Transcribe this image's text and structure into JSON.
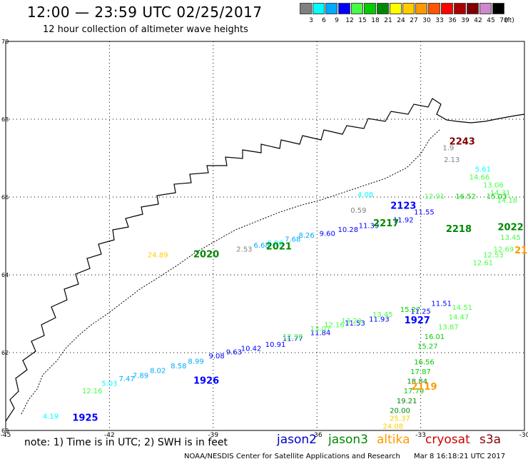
{
  "header": {
    "title": "12:00 — 23:59 UTC 02/25/2017",
    "subtitle": "12 hour collection of altimeter wave heights"
  },
  "color_scale": {
    "unit_label": "(ft)",
    "bins": [
      {
        "label": "3",
        "color": "#808080"
      },
      {
        "label": "6",
        "color": "#00ffff"
      },
      {
        "label": "9",
        "color": "#00aaff"
      },
      {
        "label": "12",
        "color": "#0000ff"
      },
      {
        "label": "15",
        "color": "#44ff44"
      },
      {
        "label": "18",
        "color": "#00cc00"
      },
      {
        "label": "21",
        "color": "#008800"
      },
      {
        "label": "24",
        "color": "#ffff00"
      },
      {
        "label": "27",
        "color": "#ffcc00"
      },
      {
        "label": "30",
        "color": "#ff9900"
      },
      {
        "label": "33",
        "color": "#ff5500"
      },
      {
        "label": "36",
        "color": "#ff0000"
      },
      {
        "label": "39",
        "color": "#aa0000"
      },
      {
        "label": "42",
        "color": "#800000"
      },
      {
        "label": "45",
        "color": "#cc88cc"
      },
      {
        "label": "70",
        "color": "#000000"
      }
    ]
  },
  "map": {
    "lon_range": [
      -45,
      -30
    ],
    "lat_range": [
      60,
      70
    ],
    "lon_ticks": [
      "-45",
      "-42",
      "-39",
      "-36",
      "-33",
      "-30"
    ],
    "lat_ticks": [
      "70",
      "68",
      "66",
      "64",
      "62",
      "60"
    ],
    "grid": "dotted",
    "time_labels": [
      {
        "text": "2243",
        "lon": -31.8,
        "lat": 67.35,
        "color": "#800000"
      },
      {
        "text": "2123",
        "lon": -33.5,
        "lat": 65.7,
        "color": "#0000ff"
      },
      {
        "text": "2217",
        "lon": -34.0,
        "lat": 65.25,
        "color": "#008800"
      },
      {
        "text": "2218",
        "lon": -31.9,
        "lat": 65.1,
        "color": "#008800"
      },
      {
        "text": "2022",
        "lon": -30.4,
        "lat": 65.15,
        "color": "#008800"
      },
      {
        "text": "2020",
        "lon": -39.2,
        "lat": 64.45,
        "color": "#008800"
      },
      {
        "text": "2021",
        "lon": -37.1,
        "lat": 64.65,
        "color": "#008800"
      },
      {
        "text": "1927",
        "lon": -33.1,
        "lat": 62.75,
        "color": "#0000ff"
      },
      {
        "text": "1926",
        "lon": -39.2,
        "lat": 61.2,
        "color": "#0000ff"
      },
      {
        "text": "1925",
        "lon": -42.7,
        "lat": 60.25,
        "color": "#0000ff"
      },
      {
        "text": "2119",
        "lon": -32.9,
        "lat": 61.05,
        "color": "#ff9900"
      },
      {
        "text": "21",
        "lon": -30.1,
        "lat": 64.55,
        "color": "#ff9900"
      }
    ],
    "tracks": [
      {
        "name": "jason2 1925-1926",
        "points": [
          {
            "text": "4.19",
            "lon": -43.7,
            "lat": 60.3
          },
          {
            "text": "12.16",
            "lon": -42.5,
            "lat": 60.95
          },
          {
            "text": "5.03",
            "lon": -42.0,
            "lat": 61.15
          },
          {
            "text": "7.47",
            "lon": -41.5,
            "lat": 61.27
          },
          {
            "text": "7.89",
            "lon": -41.1,
            "lat": 61.35
          },
          {
            "text": "8.02",
            "lon": -40.6,
            "lat": 61.48
          },
          {
            "text": "8.58",
            "lon": -40.0,
            "lat": 61.6
          },
          {
            "text": "8.99",
            "lon": -39.5,
            "lat": 61.72
          },
          {
            "text": "9.08",
            "lon": -38.9,
            "lat": 61.85
          },
          {
            "text": "9.63",
            "lon": -38.4,
            "lat": 61.95
          },
          {
            "text": "10.42",
            "lon": -37.9,
            "lat": 62.05
          },
          {
            "text": "10.91",
            "lon": -37.2,
            "lat": 62.15
          },
          {
            "text": "11.77",
            "lon": -36.7,
            "lat": 62.3
          },
          {
            "text": "11.84",
            "lon": -35.9,
            "lat": 62.45
          },
          {
            "text": "11.53",
            "lon": -34.9,
            "lat": 62.7
          },
          {
            "text": "11.93",
            "lon": -34.2,
            "lat": 62.8
          },
          {
            "text": "11.25",
            "lon": -33.0,
            "lat": 63.0
          },
          {
            "text": "11.51",
            "lon": -32.4,
            "lat": 63.2
          }
        ]
      },
      {
        "name": "jason3 track",
        "points": [
          {
            "text": "12.38",
            "lon": -36.7,
            "lat": 62.35
          },
          {
            "text": "13.07",
            "lon": -35.9,
            "lat": 62.55
          },
          {
            "text": "12.16",
            "lon": -35.5,
            "lat": 62.65
          },
          {
            "text": "13.29",
            "lon": -35.0,
            "lat": 62.75
          },
          {
            "text": "13.45",
            "lon": -34.1,
            "lat": 62.92
          },
          {
            "text": "15.27",
            "lon": -33.3,
            "lat": 63.05
          },
          {
            "text": "16.01",
            "lon": -32.6,
            "lat": 62.35
          },
          {
            "text": "15.27",
            "lon": -32.8,
            "lat": 62.1
          },
          {
            "text": "16.56",
            "lon": -32.9,
            "lat": 61.7
          },
          {
            "text": "17.87",
            "lon": -33.0,
            "lat": 61.45
          },
          {
            "text": "18.84",
            "lon": -33.1,
            "lat": 61.2
          },
          {
            "text": "17.79",
            "lon": -33.2,
            "lat": 60.95
          },
          {
            "text": "19.21",
            "lon": -33.4,
            "lat": 60.7
          },
          {
            "text": "20.00",
            "lon": -33.6,
            "lat": 60.45
          }
        ]
      },
      {
        "name": "altika track",
        "points": [
          {
            "text": "24.89",
            "lon": -40.6,
            "lat": 64.45
          },
          {
            "text": "25.37",
            "lon": -33.6,
            "lat": 60.25
          },
          {
            "text": "24.08",
            "lon": -33.8,
            "lat": 60.05
          }
        ]
      },
      {
        "name": "cryosat track",
        "points": [
          {
            "text": "2.53",
            "lon": -38.1,
            "lat": 64.6
          },
          {
            "text": "6.68",
            "lon": -37.6,
            "lat": 64.7
          },
          {
            "text": "5.80",
            "lon": -37.2,
            "lat": 64.75
          },
          {
            "text": "7.68",
            "lon": -36.7,
            "lat": 64.85
          },
          {
            "text": "8.26",
            "lon": -36.3,
            "lat": 64.95
          },
          {
            "text": "9.60",
            "lon": -35.7,
            "lat": 65.0
          },
          {
            "text": "10.28",
            "lon": -35.1,
            "lat": 65.1
          },
          {
            "text": "11.39",
            "lon": -34.5,
            "lat": 65.2
          },
          {
            "text": "11.92",
            "lon": -33.5,
            "lat": 65.35
          },
          {
            "text": "11.55",
            "lon": -32.9,
            "lat": 65.55
          }
        ]
      },
      {
        "name": "north tracks",
        "points": [
          {
            "text": "0.59",
            "lon": -34.8,
            "lat": 65.6
          },
          {
            "text": "4.08",
            "lon": -34.6,
            "lat": 66.0
          },
          {
            "text": "2.13",
            "lon": -32.1,
            "lat": 66.9
          },
          {
            "text": "1.9",
            "lon": -32.2,
            "lat": 67.2
          },
          {
            "text": "5.61",
            "lon": -31.2,
            "lat": 66.65
          },
          {
            "text": "14.66",
            "lon": -31.3,
            "lat": 66.45
          },
          {
            "text": "13.06",
            "lon": -30.9,
            "lat": 66.25
          },
          {
            "text": "14.31",
            "lon": -30.7,
            "lat": 66.05
          },
          {
            "text": "14.18",
            "lon": -30.5,
            "lat": 65.85
          },
          {
            "text": "12.91",
            "lon": -32.6,
            "lat": 65.95
          },
          {
            "text": "16.52",
            "lon": -31.7,
            "lat": 65.95
          },
          {
            "text": "15.03",
            "lon": -30.8,
            "lat": 65.95
          },
          {
            "text": "13.45",
            "lon": -30.4,
            "lat": 64.9
          },
          {
            "text": "12.53",
            "lon": -30.9,
            "lat": 64.45
          },
          {
            "text": "12.69",
            "lon": -30.6,
            "lat": 64.6
          },
          {
            "text": "12.61",
            "lon": -31.2,
            "lat": 64.25
          },
          {
            "text": "14.51",
            "lon": -31.8,
            "lat": 63.1
          },
          {
            "text": "14.47",
            "lon": -31.9,
            "lat": 62.85
          },
          {
            "text": "13.87",
            "lon": -32.2,
            "lat": 62.6
          }
        ]
      }
    ]
  },
  "footer": {
    "note": "note: 1) Time is in UTC; 2) SWH is in feet",
    "credit": "NOAA/NESDIS Center for Satellite Applications and Research",
    "generated": "Mar 8 16:18:21 UTC 2017",
    "satellites": [
      {
        "name": "jason2",
        "color": "#0000cc"
      },
      {
        "name": "jason3",
        "color": "#008800"
      },
      {
        "name": "altika",
        "color": "#ff9900"
      },
      {
        "name": "cryosat",
        "color": "#cc0000"
      },
      {
        "name": "s3a",
        "color": "#880000"
      }
    ]
  }
}
